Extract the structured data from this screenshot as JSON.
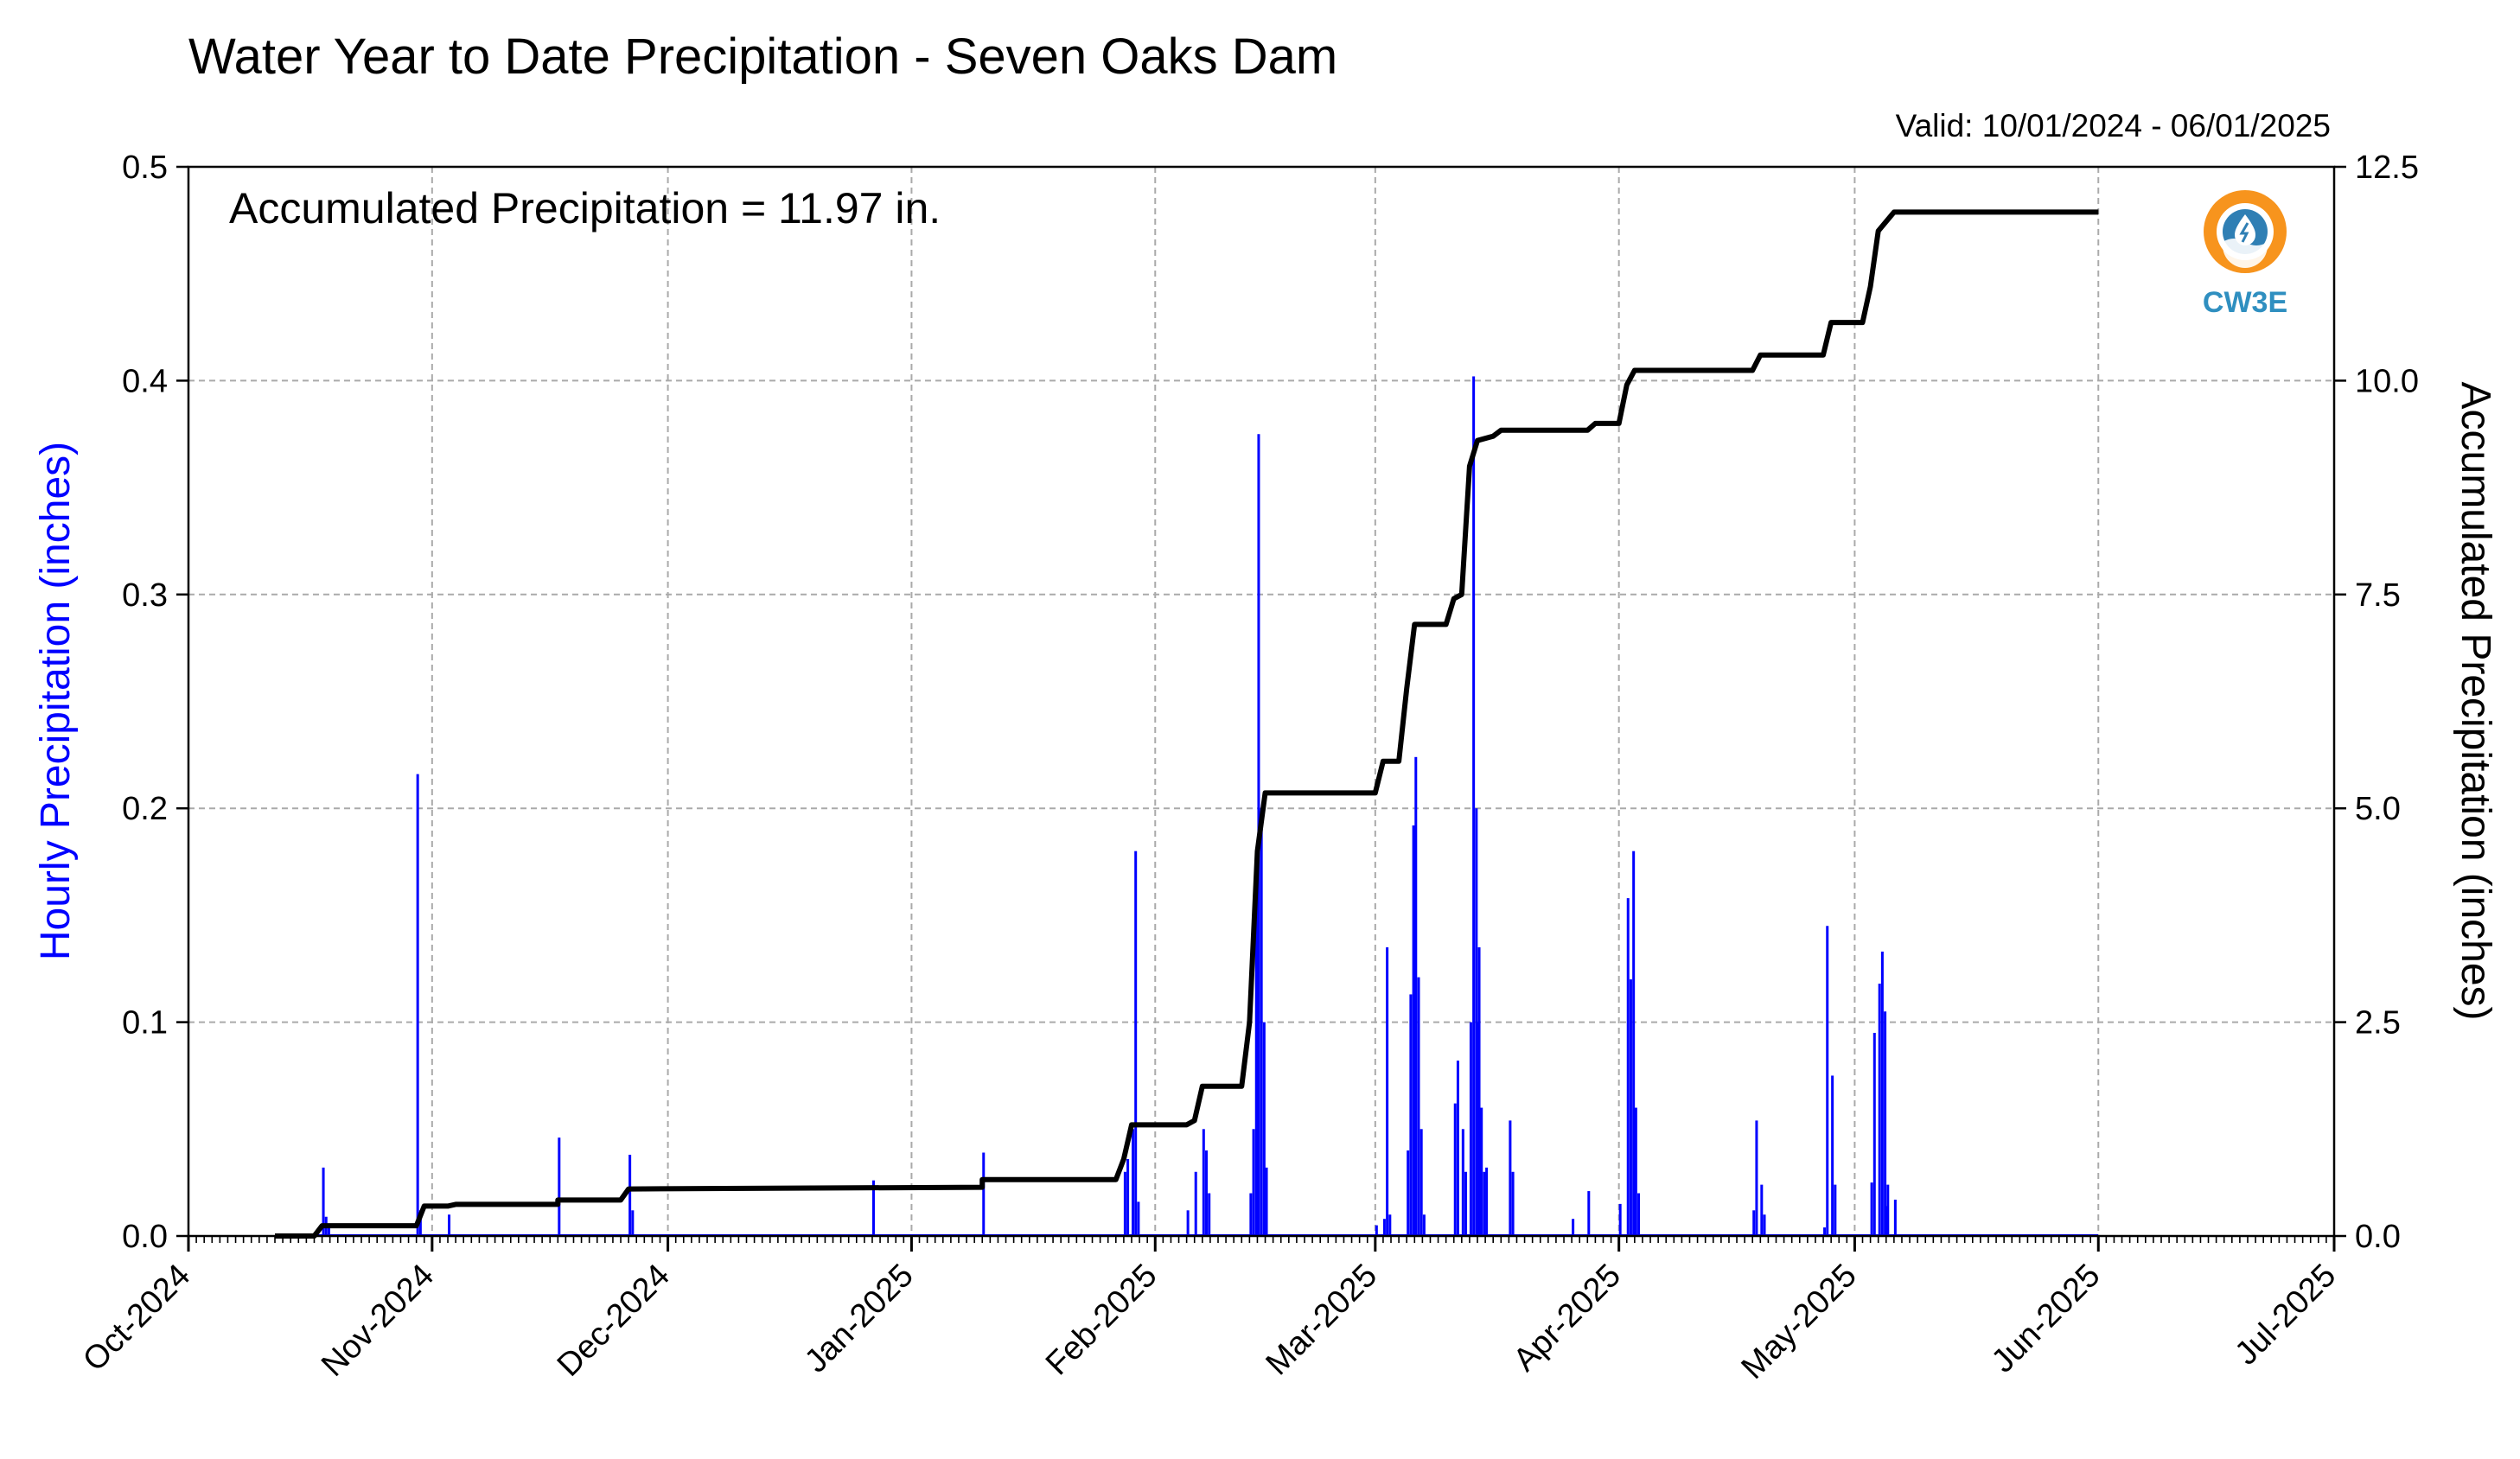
{
  "chart_data": {
    "type": "bar",
    "title": "Water Year to Date Precipitation - Seven Oaks Dam",
    "subtitle": "Valid: 10/01/2024 - 06/01/2025",
    "annotation": "Accumulated Precipitation = 11.97 in.",
    "logo_text": "CW3E",
    "ylabel": "Hourly Precipitation (inches)",
    "y2label": "Accumulated Precipitation (inches)",
    "ylim": [
      0,
      0.5
    ],
    "y2lim": [
      0,
      12.5
    ],
    "xlim": [
      "2024-10-01",
      "2025-07-01"
    ],
    "yticks": [
      "0.0",
      "0.1",
      "0.2",
      "0.3",
      "0.4",
      "0.5"
    ],
    "y2ticks": [
      "0.0",
      "2.5",
      "5.0",
      "7.5",
      "10.0",
      "12.5"
    ],
    "xticks": [
      {
        "date": "2024-10-01",
        "label": "Oct-2024"
      },
      {
        "date": "2024-11-01",
        "label": "Nov-2024"
      },
      {
        "date": "2024-12-01",
        "label": "Dec-2024"
      },
      {
        "date": "2025-01-01",
        "label": "Jan-2025"
      },
      {
        "date": "2025-02-01",
        "label": "Feb-2025"
      },
      {
        "date": "2025-03-01",
        "label": "Mar-2025"
      },
      {
        "date": "2025-04-01",
        "label": "Apr-2025"
      },
      {
        "date": "2025-05-01",
        "label": "May-2025"
      },
      {
        "date": "2025-06-01",
        "label": "Jun-2025"
      },
      {
        "date": "2025-07-01",
        "label": "Jul-2025"
      }
    ],
    "grid": true,
    "series": [
      {
        "kind": "bar",
        "color": "#0000ff",
        "points": [
          [
            "2024-10-18",
            0.032
          ],
          [
            "2024-10-18",
            0.009
          ],
          [
            "2024-10-18",
            0.005
          ],
          [
            "2024-10-30",
            0.216
          ],
          [
            "2024-10-30",
            0.012
          ],
          [
            "2024-11-03",
            0.01
          ],
          [
            "2024-11-17",
            0.046
          ],
          [
            "2024-11-26",
            0.038
          ],
          [
            "2024-11-26",
            0.012
          ],
          [
            "2024-12-27",
            0.026
          ],
          [
            "2025-01-10",
            0.039
          ],
          [
            "2025-01-28",
            0.03
          ],
          [
            "2025-01-28",
            0.036
          ],
          [
            "2025-01-29",
            0.05
          ],
          [
            "2025-01-29",
            0.18
          ],
          [
            "2025-01-29",
            0.016
          ],
          [
            "2025-02-05",
            0.012
          ],
          [
            "2025-02-06",
            0.03
          ],
          [
            "2025-02-07",
            0.05
          ],
          [
            "2025-02-07",
            0.04
          ],
          [
            "2025-02-07",
            0.02
          ],
          [
            "2025-02-13",
            0.02
          ],
          [
            "2025-02-13",
            0.05
          ],
          [
            "2025-02-13",
            0.18
          ],
          [
            "2025-02-14",
            0.375
          ],
          [
            "2025-02-14",
            0.2
          ],
          [
            "2025-02-14",
            0.1
          ],
          [
            "2025-02-15",
            0.032
          ],
          [
            "2025-03-01",
            0.005
          ],
          [
            "2025-03-02",
            0.008
          ],
          [
            "2025-03-02",
            0.135
          ],
          [
            "2025-03-02",
            0.01
          ],
          [
            "2025-03-05",
            0.04
          ],
          [
            "2025-03-05",
            0.113
          ],
          [
            "2025-03-05",
            0.192
          ],
          [
            "2025-03-06",
            0.224
          ],
          [
            "2025-03-06",
            0.121
          ],
          [
            "2025-03-06",
            0.05
          ],
          [
            "2025-03-06",
            0.01
          ],
          [
            "2025-03-11",
            0.062
          ],
          [
            "2025-03-11",
            0.082
          ],
          [
            "2025-03-12",
            0.05
          ],
          [
            "2025-03-12",
            0.03
          ],
          [
            "2025-03-13",
            0.1
          ],
          [
            "2025-03-13",
            0.402
          ],
          [
            "2025-03-13",
            0.2
          ],
          [
            "2025-03-13",
            0.135
          ],
          [
            "2025-03-14",
            0.1
          ],
          [
            "2025-03-14",
            0.06
          ],
          [
            "2025-03-14",
            0.03
          ],
          [
            "2025-03-15",
            0.032
          ],
          [
            "2025-03-18",
            0.054
          ],
          [
            "2025-03-18",
            0.03
          ],
          [
            "2025-03-26",
            0.008
          ],
          [
            "2025-03-28",
            0.021
          ],
          [
            "2025-04-01",
            0.015
          ],
          [
            "2025-04-02",
            0.158
          ],
          [
            "2025-04-02",
            0.12
          ],
          [
            "2025-04-02",
            0.18
          ],
          [
            "2025-04-03",
            0.06
          ],
          [
            "2025-04-03",
            0.02
          ],
          [
            "2025-04-18",
            0.012
          ],
          [
            "2025-04-18",
            0.054
          ],
          [
            "2025-04-19",
            0.024
          ],
          [
            "2025-04-19",
            0.01
          ],
          [
            "2025-04-27",
            0.004
          ],
          [
            "2025-04-27",
            0.145
          ],
          [
            "2025-04-28",
            0.075
          ],
          [
            "2025-04-28",
            0.024
          ],
          [
            "2025-05-03",
            0.025
          ],
          [
            "2025-05-03",
            0.095
          ],
          [
            "2025-05-04",
            0.118
          ],
          [
            "2025-05-04",
            0.133
          ],
          [
            "2025-05-04",
            0.105
          ],
          [
            "2025-05-04",
            0.024
          ],
          [
            "2025-05-05",
            0.014
          ],
          [
            "2025-05-06",
            0.017
          ]
        ]
      },
      {
        "kind": "line",
        "color": "#000000",
        "axis": "y2",
        "points": [
          [
            "2024-10-12",
            0.0
          ],
          [
            "2024-10-17",
            0.0
          ],
          [
            "2024-10-18",
            0.12
          ],
          [
            "2024-10-30",
            0.12
          ],
          [
            "2024-10-31",
            0.35
          ],
          [
            "2024-11-03",
            0.35
          ],
          [
            "2024-11-04",
            0.37
          ],
          [
            "2024-11-17",
            0.37
          ],
          [
            "2024-11-17",
            0.42
          ],
          [
            "2024-11-25",
            0.42
          ],
          [
            "2024-11-26",
            0.55
          ],
          [
            "2025-01-10",
            0.57
          ],
          [
            "2025-01-10",
            0.66
          ],
          [
            "2025-01-27",
            0.66
          ],
          [
            "2025-01-28",
            0.9
          ],
          [
            "2025-01-29",
            1.3
          ],
          [
            "2025-02-05",
            1.3
          ],
          [
            "2025-02-06",
            1.35
          ],
          [
            "2025-02-07",
            1.75
          ],
          [
            "2025-02-12",
            1.75
          ],
          [
            "2025-02-13",
            2.5
          ],
          [
            "2025-02-14",
            4.5
          ],
          [
            "2025-02-15",
            5.18
          ],
          [
            "2025-03-01",
            5.18
          ],
          [
            "2025-03-02",
            5.55
          ],
          [
            "2025-03-04",
            5.55
          ],
          [
            "2025-03-05",
            6.4
          ],
          [
            "2025-03-06",
            7.15
          ],
          [
            "2025-03-10",
            7.15
          ],
          [
            "2025-03-11",
            7.45
          ],
          [
            "2025-03-12",
            7.5
          ],
          [
            "2025-03-13",
            9.0
          ],
          [
            "2025-03-14",
            9.3
          ],
          [
            "2025-03-16",
            9.35
          ],
          [
            "2025-03-17",
            9.42
          ],
          [
            "2025-03-28",
            9.42
          ],
          [
            "2025-03-29",
            9.5
          ],
          [
            "2025-04-01",
            9.5
          ],
          [
            "2025-04-02",
            9.95
          ],
          [
            "2025-04-03",
            10.12
          ],
          [
            "2025-04-18",
            10.12
          ],
          [
            "2025-04-19",
            10.3
          ],
          [
            "2025-04-27",
            10.3
          ],
          [
            "2025-04-28",
            10.68
          ],
          [
            "2025-05-02",
            10.68
          ],
          [
            "2025-05-03",
            11.1
          ],
          [
            "2025-05-04",
            11.75
          ],
          [
            "2025-05-06",
            11.97
          ],
          [
            "2025-06-01",
            11.97
          ]
        ]
      }
    ]
  }
}
